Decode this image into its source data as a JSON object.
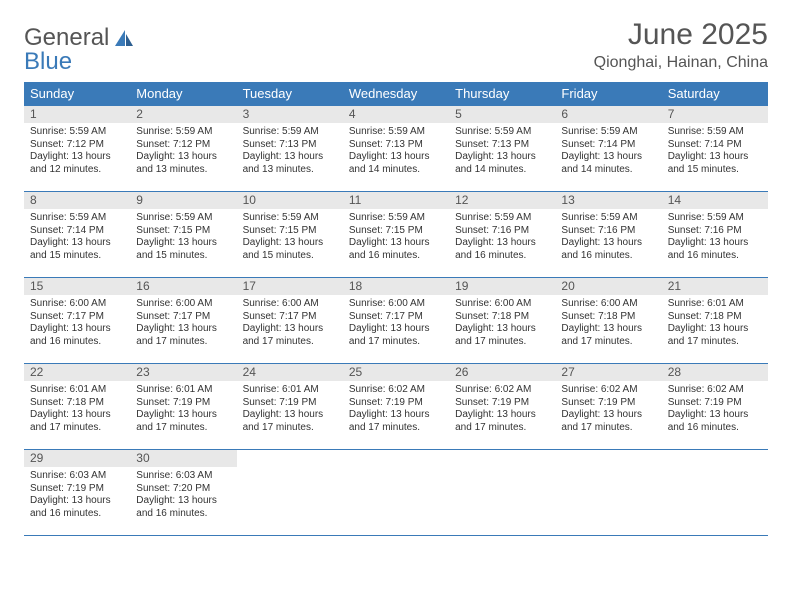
{
  "logo": {
    "text1": "General",
    "text2": "Blue"
  },
  "title": "June 2025",
  "location": "Qionghai, Hainan, China",
  "colors": {
    "header_bg": "#3a7ab8",
    "header_text": "#ffffff",
    "daynum_bg": "#e8e8e8",
    "border": "#3a7ab8",
    "body_text": "#333333",
    "title_text": "#555555"
  },
  "weekdays": [
    "Sunday",
    "Monday",
    "Tuesday",
    "Wednesday",
    "Thursday",
    "Friday",
    "Saturday"
  ],
  "weeks": [
    [
      {
        "n": "1",
        "sr": "5:59 AM",
        "ss": "7:12 PM",
        "dl": "13 hours and 12 minutes."
      },
      {
        "n": "2",
        "sr": "5:59 AM",
        "ss": "7:12 PM",
        "dl": "13 hours and 13 minutes."
      },
      {
        "n": "3",
        "sr": "5:59 AM",
        "ss": "7:13 PM",
        "dl": "13 hours and 13 minutes."
      },
      {
        "n": "4",
        "sr": "5:59 AM",
        "ss": "7:13 PM",
        "dl": "13 hours and 14 minutes."
      },
      {
        "n": "5",
        "sr": "5:59 AM",
        "ss": "7:13 PM",
        "dl": "13 hours and 14 minutes."
      },
      {
        "n": "6",
        "sr": "5:59 AM",
        "ss": "7:14 PM",
        "dl": "13 hours and 14 minutes."
      },
      {
        "n": "7",
        "sr": "5:59 AM",
        "ss": "7:14 PM",
        "dl": "13 hours and 15 minutes."
      }
    ],
    [
      {
        "n": "8",
        "sr": "5:59 AM",
        "ss": "7:14 PM",
        "dl": "13 hours and 15 minutes."
      },
      {
        "n": "9",
        "sr": "5:59 AM",
        "ss": "7:15 PM",
        "dl": "13 hours and 15 minutes."
      },
      {
        "n": "10",
        "sr": "5:59 AM",
        "ss": "7:15 PM",
        "dl": "13 hours and 15 minutes."
      },
      {
        "n": "11",
        "sr": "5:59 AM",
        "ss": "7:15 PM",
        "dl": "13 hours and 16 minutes."
      },
      {
        "n": "12",
        "sr": "5:59 AM",
        "ss": "7:16 PM",
        "dl": "13 hours and 16 minutes."
      },
      {
        "n": "13",
        "sr": "5:59 AM",
        "ss": "7:16 PM",
        "dl": "13 hours and 16 minutes."
      },
      {
        "n": "14",
        "sr": "5:59 AM",
        "ss": "7:16 PM",
        "dl": "13 hours and 16 minutes."
      }
    ],
    [
      {
        "n": "15",
        "sr": "6:00 AM",
        "ss": "7:17 PM",
        "dl": "13 hours and 16 minutes."
      },
      {
        "n": "16",
        "sr": "6:00 AM",
        "ss": "7:17 PM",
        "dl": "13 hours and 17 minutes."
      },
      {
        "n": "17",
        "sr": "6:00 AM",
        "ss": "7:17 PM",
        "dl": "13 hours and 17 minutes."
      },
      {
        "n": "18",
        "sr": "6:00 AM",
        "ss": "7:17 PM",
        "dl": "13 hours and 17 minutes."
      },
      {
        "n": "19",
        "sr": "6:00 AM",
        "ss": "7:18 PM",
        "dl": "13 hours and 17 minutes."
      },
      {
        "n": "20",
        "sr": "6:00 AM",
        "ss": "7:18 PM",
        "dl": "13 hours and 17 minutes."
      },
      {
        "n": "21",
        "sr": "6:01 AM",
        "ss": "7:18 PM",
        "dl": "13 hours and 17 minutes."
      }
    ],
    [
      {
        "n": "22",
        "sr": "6:01 AM",
        "ss": "7:18 PM",
        "dl": "13 hours and 17 minutes."
      },
      {
        "n": "23",
        "sr": "6:01 AM",
        "ss": "7:19 PM",
        "dl": "13 hours and 17 minutes."
      },
      {
        "n": "24",
        "sr": "6:01 AM",
        "ss": "7:19 PM",
        "dl": "13 hours and 17 minutes."
      },
      {
        "n": "25",
        "sr": "6:02 AM",
        "ss": "7:19 PM",
        "dl": "13 hours and 17 minutes."
      },
      {
        "n": "26",
        "sr": "6:02 AM",
        "ss": "7:19 PM",
        "dl": "13 hours and 17 minutes."
      },
      {
        "n": "27",
        "sr": "6:02 AM",
        "ss": "7:19 PM",
        "dl": "13 hours and 17 minutes."
      },
      {
        "n": "28",
        "sr": "6:02 AM",
        "ss": "7:19 PM",
        "dl": "13 hours and 16 minutes."
      }
    ],
    [
      {
        "n": "29",
        "sr": "6:03 AM",
        "ss": "7:19 PM",
        "dl": "13 hours and 16 minutes."
      },
      {
        "n": "30",
        "sr": "6:03 AM",
        "ss": "7:20 PM",
        "dl": "13 hours and 16 minutes."
      },
      {
        "empty": true
      },
      {
        "empty": true
      },
      {
        "empty": true
      },
      {
        "empty": true
      },
      {
        "empty": true
      }
    ]
  ],
  "labels": {
    "sunrise": "Sunrise:",
    "sunset": "Sunset:",
    "daylight": "Daylight:"
  }
}
